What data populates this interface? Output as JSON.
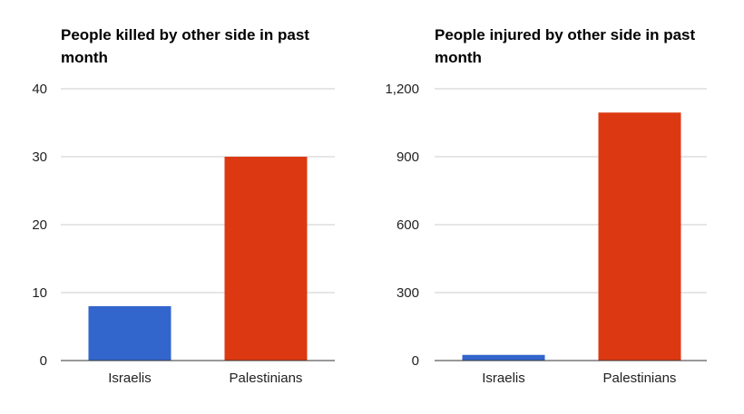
{
  "chart_data": [
    {
      "type": "bar",
      "title": "People killed by other side in past month",
      "categories": [
        "Israelis",
        "Palestinians"
      ],
      "values": [
        8,
        30
      ],
      "colors": [
        "#3366cc",
        "#dc3912"
      ],
      "ylim": [
        0,
        40
      ],
      "yticks": [
        0,
        10,
        20,
        30,
        40
      ],
      "ytick_labels": [
        "0",
        "10",
        "20",
        "30",
        "40"
      ],
      "xlabel": "",
      "ylabel": "",
      "grid": true,
      "legend": "none"
    },
    {
      "type": "bar",
      "title": "People injured by other side in past month",
      "categories": [
        "Israelis",
        "Palestinians"
      ],
      "values": [
        25,
        1095
      ],
      "colors": [
        "#3366cc",
        "#dc3912"
      ],
      "ylim": [
        0,
        1200
      ],
      "yticks": [
        0,
        300,
        600,
        900,
        1200
      ],
      "ytick_labels": [
        "0",
        "300",
        "600",
        "900",
        "1,200"
      ],
      "xlabel": "",
      "ylabel": "",
      "grid": true,
      "legend": "none"
    }
  ]
}
